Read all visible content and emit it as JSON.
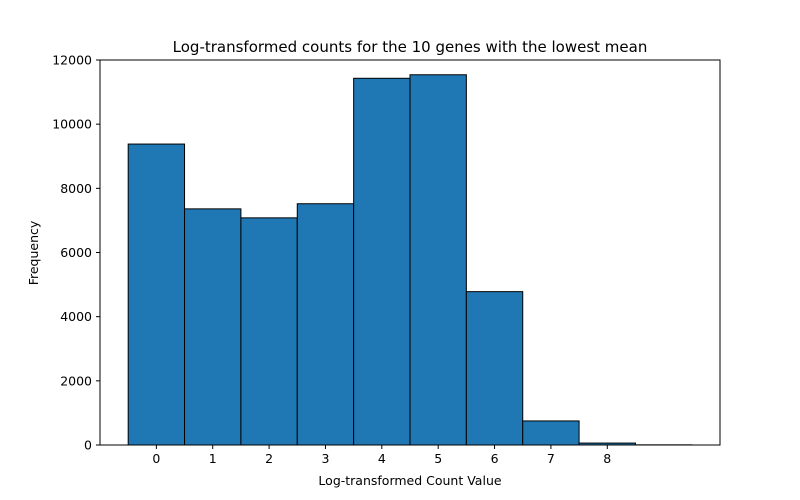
{
  "chart_data": {
    "type": "bar",
    "title": "Log-transformed counts for the 10 genes with the lowest mean",
    "xlabel": "Log-transformed Count Value",
    "ylabel": "Frequency",
    "bins": [
      {
        "start": -0.5,
        "end": 0.5,
        "value": 9380
      },
      {
        "start": 0.5,
        "end": 1.5,
        "value": 7360
      },
      {
        "start": 1.5,
        "end": 2.5,
        "value": 7080
      },
      {
        "start": 2.5,
        "end": 3.5,
        "value": 7520
      },
      {
        "start": 3.5,
        "end": 4.5,
        "value": 11430
      },
      {
        "start": 4.5,
        "end": 5.5,
        "value": 11540
      },
      {
        "start": 5.5,
        "end": 6.5,
        "value": 4780
      },
      {
        "start": 6.5,
        "end": 7.5,
        "value": 750
      },
      {
        "start": 7.5,
        "end": 8.5,
        "value": 60
      },
      {
        "start": 8.5,
        "end": 9.5,
        "value": 5
      }
    ],
    "xlim": [
      -1.0,
      10.0
    ],
    "ylim": [
      0,
      12000
    ],
    "xticks": [
      0,
      1,
      2,
      3,
      4,
      5,
      6,
      7,
      8
    ],
    "xtick_labels": [
      "0",
      "1",
      "2",
      "3",
      "4",
      "5",
      "6",
      "7",
      "8"
    ],
    "yticks": [
      0,
      2000,
      4000,
      6000,
      8000,
      10000,
      12000
    ],
    "ytick_labels": [
      "0",
      "2000",
      "4000",
      "6000",
      "8000",
      "10000",
      "12000"
    ],
    "bar_color": "#1f77b4",
    "edge_color": "#000000",
    "grid": false,
    "legend": "none"
  }
}
